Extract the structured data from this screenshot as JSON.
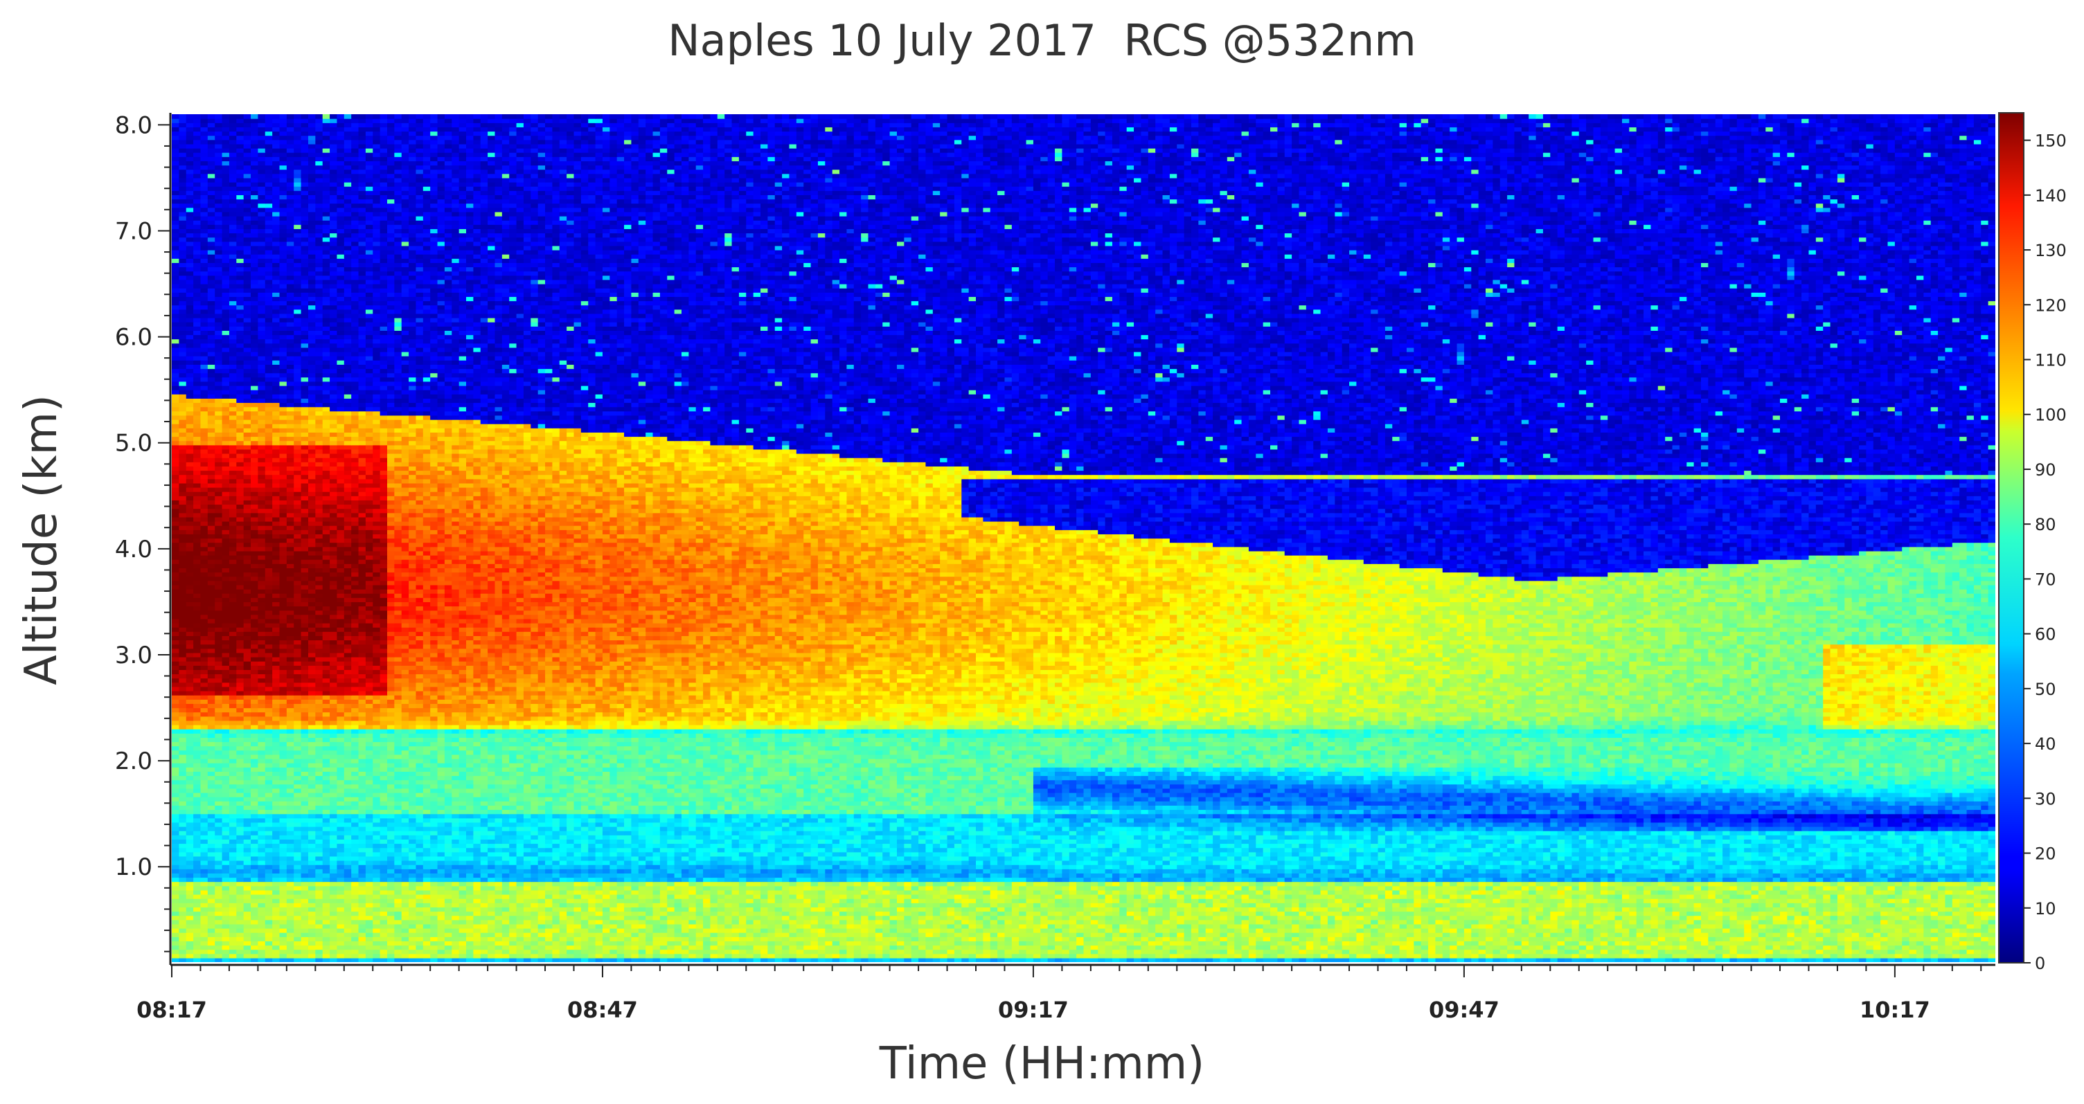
{
  "chart_data": {
    "type": "heatmap",
    "title": "Naples 10 July 2017  RCS @532nm",
    "xlabel": "Time (HH:mm)",
    "ylabel": "Altitude (km)",
    "x_ticks": [
      "08:17",
      "08:47",
      "09:17",
      "09:47",
      "10:17"
    ],
    "x_tick_minutes": [
      0,
      30,
      60,
      90,
      120
    ],
    "x_range_minutes": [
      0,
      127
    ],
    "y_ticks": [
      "1.0",
      "2.0",
      "3.0",
      "4.0",
      "5.0",
      "6.0",
      "7.0",
      "8.0"
    ],
    "y_tick_values": [
      1.0,
      2.0,
      3.0,
      4.0,
      5.0,
      6.0,
      7.0,
      8.0
    ],
    "ylim": [
      0.1,
      8.1
    ],
    "colorbar": {
      "ticks": [
        "0",
        "10",
        "20",
        "30",
        "40",
        "50",
        "60",
        "70",
        "80",
        "90",
        "100",
        "110",
        "120",
        "130",
        "140",
        "150"
      ],
      "range": [
        0,
        155
      ],
      "colormap": "jet"
    },
    "grid": false
  }
}
